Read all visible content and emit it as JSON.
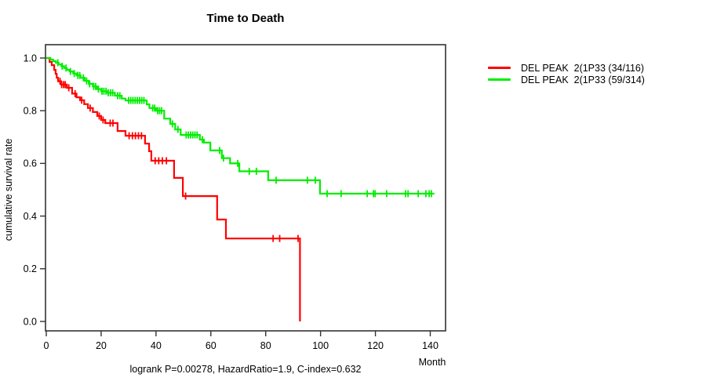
{
  "title": "Time to Death",
  "ylabel": "cumulative survival rate",
  "xlabel": "Month",
  "annotation": "logrank P=0.00278, HazardRatio=1.9, C-index=0.632",
  "legend": {
    "items": [
      {
        "label": "DEL PEAK  2(1P33 (34/116)",
        "color": "#ff0000"
      },
      {
        "label": "DEL PEAK  2(1P33 (59/314)",
        "color": "#00ee00"
      }
    ]
  },
  "colors": {
    "axis": "#333333",
    "red_series": "#ff0000",
    "green_series": "#00ee00"
  },
  "chart_data": {
    "type": "line",
    "subtype": "kaplan-meier-step",
    "title": "Time to Death",
    "xlabel": "Month",
    "ylabel": "cumulative survival rate",
    "annotation": "logrank P=0.00278, HazardRatio=1.9, C-index=0.632",
    "xlim": [
      0,
      146
    ],
    "ylim": [
      0.0,
      1.0
    ],
    "xticks": [
      "0",
      "20",
      "40",
      "60",
      "80",
      "100",
      "120",
      "140"
    ],
    "xtick_values": [
      0,
      20,
      40,
      60,
      80,
      100,
      120,
      140
    ],
    "yticks": [
      "0.0",
      "0.2",
      "0.4",
      "0.6",
      "0.8",
      "1.0"
    ],
    "ytick_values": [
      0.0,
      0.2,
      0.4,
      0.6,
      0.8,
      1.0
    ],
    "grid": false,
    "legend_position": "right-outside",
    "series": [
      {
        "name": "DEL PEAK  2(1P33 (34/116)",
        "color": "#ff0000",
        "end_month": 92.5,
        "steps": [
          [
            0,
            1.0
          ],
          [
            1.2,
            0.985
          ],
          [
            2.0,
            0.973
          ],
          [
            2.9,
            0.955
          ],
          [
            3.4,
            0.94
          ],
          [
            3.8,
            0.925
          ],
          [
            4.3,
            0.912
          ],
          [
            5.4,
            0.899
          ],
          [
            7.5,
            0.887
          ],
          [
            9.4,
            0.865
          ],
          [
            11.0,
            0.851
          ],
          [
            12.3,
            0.84
          ],
          [
            13.8,
            0.825
          ],
          [
            15.2,
            0.81
          ],
          [
            17.0,
            0.795
          ],
          [
            18.6,
            0.78
          ],
          [
            20.0,
            0.765
          ],
          [
            21.5,
            0.753
          ],
          [
            26.0,
            0.723
          ],
          [
            28.9,
            0.705
          ],
          [
            36.0,
            0.675
          ],
          [
            37.5,
            0.646
          ],
          [
            38.3,
            0.61
          ],
          [
            46.6,
            0.545
          ],
          [
            49.8,
            0.476
          ],
          [
            62.3,
            0.387
          ],
          [
            65.5,
            0.315
          ],
          [
            92.5,
            0.0
          ]
        ],
        "censor_months": [
          5.0,
          5.6,
          6.3,
          6.9,
          8.2,
          10.5,
          12.9,
          16.0,
          19.3,
          20.7,
          23.3,
          24.3,
          30.2,
          31.4,
          32.5,
          33.6,
          34.7,
          39.7,
          41.0,
          42.3,
          43.8,
          50.8,
          82.7,
          85.1,
          91.8
        ]
      },
      {
        "name": "DEL PEAK  2(1P33 (59/314)",
        "color": "#00ee00",
        "end_month": 141.5,
        "steps": [
          [
            0,
            1.0
          ],
          [
            1.5,
            0.994
          ],
          [
            2.5,
            0.988
          ],
          [
            3.5,
            0.982
          ],
          [
            4.5,
            0.976
          ],
          [
            5.5,
            0.969
          ],
          [
            6.5,
            0.962
          ],
          [
            7.5,
            0.955
          ],
          [
            8.5,
            0.949
          ],
          [
            9.8,
            0.941
          ],
          [
            11.0,
            0.934
          ],
          [
            12.5,
            0.925
          ],
          [
            14.0,
            0.913
          ],
          [
            15.5,
            0.902
          ],
          [
            17.0,
            0.892
          ],
          [
            18.5,
            0.882
          ],
          [
            20.0,
            0.874
          ],
          [
            22.0,
            0.868
          ],
          [
            25.0,
            0.857
          ],
          [
            27.5,
            0.846
          ],
          [
            28.9,
            0.839
          ],
          [
            36.6,
            0.824
          ],
          [
            37.6,
            0.81
          ],
          [
            40.0,
            0.8
          ],
          [
            43.0,
            0.77
          ],
          [
            45.2,
            0.75
          ],
          [
            47.0,
            0.729
          ],
          [
            49.0,
            0.708
          ],
          [
            56.0,
            0.69
          ],
          [
            57.5,
            0.679
          ],
          [
            59.8,
            0.649
          ],
          [
            64.0,
            0.62
          ],
          [
            67.0,
            0.6
          ],
          [
            70.4,
            0.57
          ],
          [
            80.9,
            0.536
          ],
          [
            99.8,
            0.485
          ]
        ],
        "censor_months": [
          4.2,
          5.8,
          7.2,
          8.8,
          10.2,
          11.5,
          12.2,
          13.5,
          14.7,
          15.8,
          17.3,
          18.0,
          19.0,
          20.3,
          21.0,
          21.8,
          22.6,
          23.4,
          24.2,
          26.0,
          26.8,
          30.0,
          30.8,
          31.6,
          32.4,
          33.2,
          34.0,
          34.8,
          35.6,
          38.8,
          39.5,
          40.6,
          41.3,
          42.0,
          46.0,
          48.0,
          51.0,
          51.8,
          52.6,
          53.4,
          54.2,
          55.0,
          56.9,
          63.2,
          64.6,
          69.8,
          74.0,
          76.6,
          83.8,
          95.2,
          98.1,
          102.4,
          107.5,
          117.0,
          119.3,
          119.9,
          124.1,
          131.0,
          131.9,
          135.6,
          138.4,
          139.6,
          140.4
        ]
      }
    ]
  }
}
